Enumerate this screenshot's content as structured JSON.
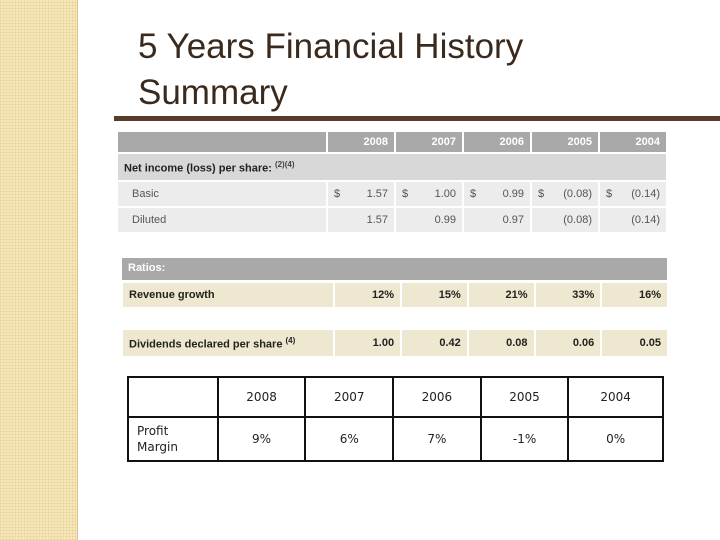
{
  "slide": {
    "title_line1": "5 Years Financial History",
    "title_line2": "Summary"
  },
  "financials": {
    "years": [
      "2008",
      "2007",
      "2006",
      "2005",
      "2004"
    ],
    "net_income_label": "Net income (loss) per share:",
    "net_income_note": "(2)(4)",
    "currency_symbol": "$",
    "basic": {
      "label": "Basic",
      "values": [
        "1.57",
        "1.00",
        "0.99",
        "(0.08)",
        "(0.14)"
      ]
    },
    "diluted": {
      "label": "Diluted",
      "values": [
        "1.57",
        "0.99",
        "0.97",
        "(0.08)",
        "(0.14)"
      ]
    },
    "ratios_label": "Ratios:",
    "revenue_growth": {
      "label": "Revenue growth",
      "values": [
        "12%",
        "15%",
        "21%",
        "33%",
        "16%"
      ]
    },
    "dividends": {
      "label": "Dividends declared per share",
      "note": "(4)",
      "values": [
        "1.00",
        "0.42",
        "0.08",
        "0.06",
        "0.05"
      ]
    }
  },
  "profit_margin": {
    "years": [
      "2008",
      "2007",
      "2006",
      "2005",
      "2004"
    ],
    "label_line1": "Profit",
    "label_line2": "Margin",
    "values": [
      "9%",
      "6%",
      "7%",
      "-1%",
      "0%"
    ]
  },
  "colors": {
    "title": "#3a2a1e",
    "rule": "#5a3a28",
    "side_strip": "#f6e7b8",
    "header_gray": "#a9a9a9",
    "row_beige": "#ede8cf"
  }
}
